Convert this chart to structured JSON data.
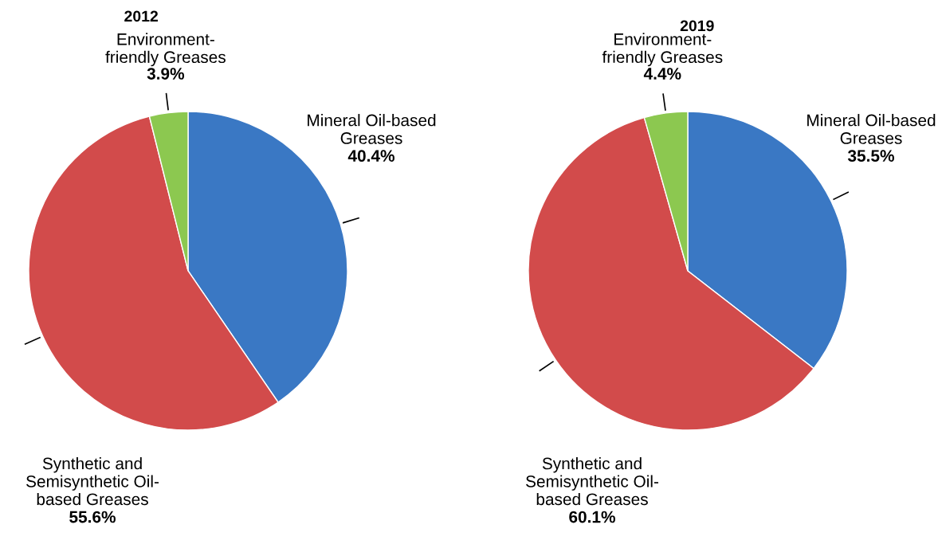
{
  "chart_data": [
    {
      "type": "pie",
      "title": "2012",
      "categories": [
        "Mineral Oil-based\nGreases",
        "Synthetic and\nSemisynthetic Oil-\nbased Greases",
        "Environment-\nfriendly Greases"
      ],
      "values": [
        40.4,
        55.6,
        3.9
      ],
      "value_labels": [
        "40.4%",
        "55.6%",
        "3.9%"
      ],
      "colors": [
        "#3a78c4",
        "#d24b4b",
        "#8cc850"
      ]
    },
    {
      "type": "pie",
      "title": "2019",
      "categories": [
        "Mineral Oil-based\nGreases",
        "Synthetic and\nSemisynthetic Oil-\nbased Greases",
        "Environment-\nfriendly Greases"
      ],
      "values": [
        35.5,
        60.1,
        4.4
      ],
      "value_labels": [
        "35.5%",
        "60.1%",
        "4.4%"
      ],
      "colors": [
        "#3a78c4",
        "#d24b4b",
        "#8cc850"
      ]
    }
  ]
}
